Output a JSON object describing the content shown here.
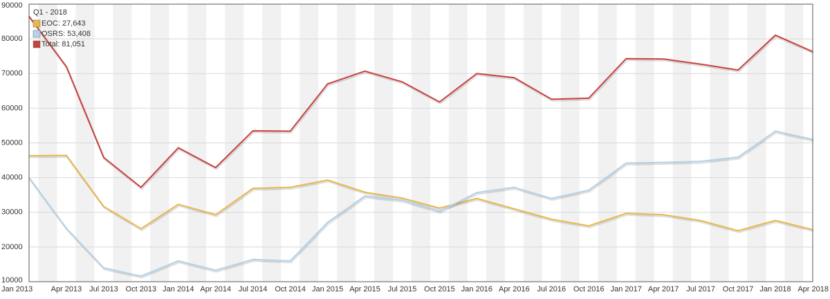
{
  "chart_data": {
    "type": "line",
    "categories": [
      "Jan 2013",
      "Apr 2013",
      "Jul 2013",
      "Oct 2013",
      "Jan 2014",
      "Apr 2014",
      "Jul 2014",
      "Oct 2014",
      "Jan 2015",
      "Apr 2015",
      "Jul 2015",
      "Oct 2015",
      "Jan 2016",
      "Apr 2016",
      "Jul 2016",
      "Oct 2016",
      "Jan 2017",
      "Apr 2017",
      "Jul 2017",
      "Oct 2017",
      "Jan 2018",
      "Apr 2018"
    ],
    "series": [
      {
        "color": "#e8b84a",
        "values": [
          46300,
          46400,
          31700,
          25300,
          32300,
          29300,
          36900,
          37200,
          39300,
          35800,
          34100,
          31200,
          34000,
          31000,
          28000,
          26100,
          29700,
          29300,
          27600,
          24700,
          27643,
          25000
        ]
      },
      {
        "color": "#b4d2e8",
        "values": [
          40000,
          25400,
          14000,
          11600,
          16000,
          13300,
          16400,
          16000,
          27100,
          34700,
          33500,
          30300,
          35700,
          37200,
          34000,
          36400,
          44200,
          44400,
          44700,
          45900,
          53408,
          51000
        ]
      },
      {
        "color": "#c9413e",
        "values": [
          86500,
          72000,
          45800,
          37200,
          48600,
          42900,
          53500,
          53400,
          67000,
          70700,
          67600,
          61800,
          70000,
          68800,
          62600,
          62900,
          74300,
          74200,
          72700,
          71000,
          81051,
          76300
        ]
      }
    ],
    "legend": {
      "title": "Q1 - 2018",
      "entries": [
        "EOC: 27,643",
        "OSRS: 53,408",
        "Total: 81,051"
      ]
    },
    "ylim": [
      10000,
      90000
    ],
    "yticks": [
      10000,
      20000,
      30000,
      40000,
      50000,
      60000,
      70000,
      80000,
      90000
    ],
    "grid": true
  }
}
